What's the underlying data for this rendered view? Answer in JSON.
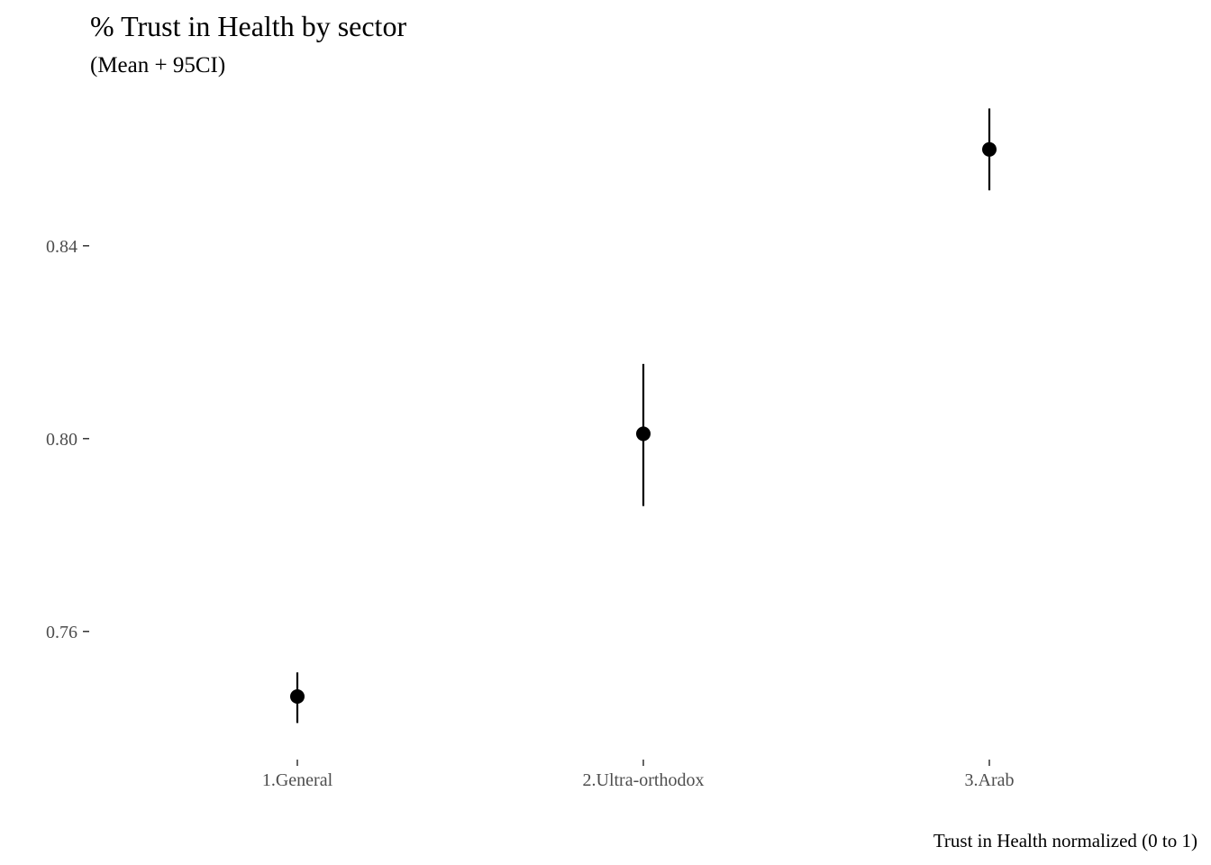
{
  "chart_data": {
    "type": "scatter",
    "title": "% Trust in Health by sector",
    "subtitle": "(Mean + 95CI)",
    "caption": "Trust in Health normalized (0 to 1)",
    "xlabel": "",
    "ylabel": "",
    "categories": [
      "1.General",
      "2.Ultra-orthodox",
      "3.Arab"
    ],
    "series": [
      {
        "mean": [
          0.7465,
          0.801,
          0.86
        ],
        "ci_low": [
          0.741,
          0.786,
          0.8515
        ],
        "ci_high": [
          0.7515,
          0.8155,
          0.8685
        ]
      }
    ],
    "yticks": [
      0.76,
      0.8,
      0.84
    ],
    "ytick_labels": [
      "0.76",
      "0.80",
      "0.84"
    ],
    "ylim": [
      0.7336,
      0.8723
    ],
    "grid": false,
    "legend": "none",
    "colors": {
      "point": "#000000",
      "errorbar": "#000000",
      "axis_text": "#4d4d4d",
      "tick": "#333333"
    }
  }
}
